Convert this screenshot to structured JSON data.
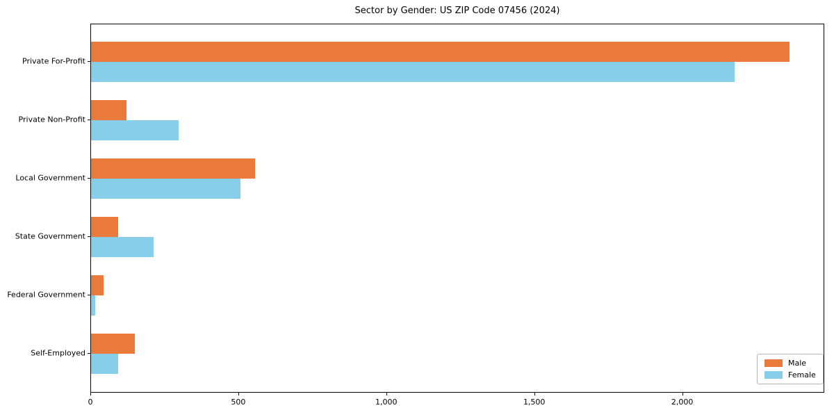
{
  "chart_data": {
    "type": "bar",
    "orientation": "horizontal",
    "title": "Sector by Gender: US ZIP Code 07456 (2024)",
    "categories": [
      "Private For-Profit",
      "Private Non-Profit",
      "Local Government",
      "State Government",
      "Federal Government",
      "Self-Employed"
    ],
    "series": [
      {
        "name": "Male",
        "color": "#e97a3c",
        "values": [
          2360,
          120,
          555,
          92,
          42,
          147
        ]
      },
      {
        "name": "Female",
        "color": "#87ceeb",
        "values": [
          2175,
          295,
          505,
          211,
          14,
          91
        ]
      }
    ],
    "xlim": [
      0,
      2480
    ],
    "xticks": [
      0,
      500,
      1000,
      1500,
      2000
    ],
    "xtick_labels": [
      "0",
      "500",
      "1,000",
      "1,500",
      "2,000"
    ],
    "ylabel": "",
    "xlabel": "",
    "grid": false,
    "legend": {
      "position": "lower right",
      "items": [
        "Male",
        "Female"
      ]
    },
    "background_color": "#ffffff",
    "spine_color": "#000000"
  }
}
